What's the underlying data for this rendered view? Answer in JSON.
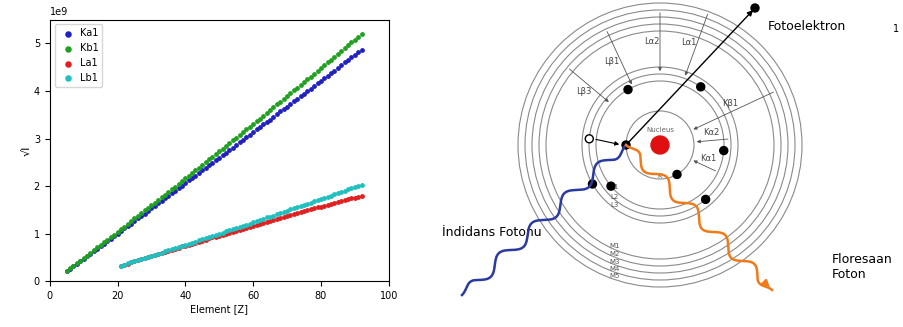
{
  "chart_data": {
    "type": "scatter",
    "x_label": "Element [Z]",
    "y_label": "√I",
    "annotations": [
      "1e9"
    ],
    "xlim": [
      0,
      100
    ],
    "ylim": [
      0,
      5.5
    ],
    "xticks": [
      0,
      20,
      40,
      60,
      80,
      100
    ],
    "yticks": [
      0,
      1,
      2,
      3,
      4,
      5
    ],
    "legend": "upper left",
    "marker": "o",
    "series": [
      {
        "name": "Ka1",
        "color": "#2020c0",
        "x": [
          5,
          6,
          7,
          8,
          9,
          10,
          11,
          12,
          13,
          14,
          15,
          16,
          17,
          18,
          19,
          20,
          21,
          22,
          23,
          24,
          25,
          26,
          27,
          28,
          29,
          30,
          31,
          32,
          33,
          34,
          35,
          36,
          37,
          38,
          39,
          40,
          41,
          42,
          43,
          44,
          45,
          46,
          47,
          48,
          49,
          50,
          51,
          52,
          53,
          54,
          55,
          56,
          57,
          58,
          59,
          60,
          61,
          62,
          63,
          64,
          65,
          66,
          67,
          68,
          69,
          70,
          71,
          72,
          73,
          74,
          75,
          76,
          77,
          78,
          79,
          80,
          81,
          82,
          83,
          84,
          85,
          86,
          87,
          88,
          89,
          90,
          91,
          92
        ],
        "values": [
          0.21,
          0.26,
          0.31,
          0.37,
          0.42,
          0.47,
          0.53,
          0.58,
          0.63,
          0.68,
          0.74,
          0.79,
          0.84,
          0.89,
          0.95,
          1.0,
          1.05,
          1.11,
          1.16,
          1.21,
          1.26,
          1.32,
          1.37,
          1.42,
          1.48,
          1.53,
          1.58,
          1.64,
          1.69,
          1.74,
          1.8,
          1.85,
          1.9,
          1.96,
          2.01,
          2.06,
          2.12,
          2.17,
          2.22,
          2.28,
          2.33,
          2.38,
          2.44,
          2.49,
          2.54,
          2.6,
          2.65,
          2.7,
          2.76,
          2.81,
          2.87,
          2.92,
          2.97,
          3.03,
          3.08,
          3.13,
          3.19,
          3.24,
          3.3,
          3.35,
          3.4,
          3.46,
          3.51,
          3.57,
          3.62,
          3.67,
          3.73,
          3.78,
          3.84,
          3.89,
          3.94,
          4.0,
          4.05,
          4.11,
          4.16,
          4.22,
          4.27,
          4.32,
          4.38,
          4.43,
          4.49,
          4.54,
          4.6,
          4.65,
          4.71,
          4.76,
          4.82,
          4.87
        ]
      },
      {
        "name": "Kb1",
        "color": "#20a020",
        "x": [
          5,
          6,
          7,
          8,
          9,
          10,
          11,
          12,
          13,
          14,
          15,
          16,
          17,
          18,
          19,
          20,
          21,
          22,
          23,
          24,
          25,
          26,
          27,
          28,
          29,
          30,
          31,
          32,
          33,
          34,
          35,
          36,
          37,
          38,
          39,
          40,
          41,
          42,
          43,
          44,
          45,
          46,
          47,
          48,
          49,
          50,
          51,
          52,
          53,
          54,
          55,
          56,
          57,
          58,
          59,
          60,
          61,
          62,
          63,
          64,
          65,
          66,
          67,
          68,
          69,
          70,
          71,
          72,
          73,
          74,
          75,
          76,
          77,
          78,
          79,
          80,
          81,
          82,
          83,
          84,
          85,
          86,
          87,
          88,
          89,
          90,
          91,
          92
        ],
        "values": [
          0.22,
          0.27,
          0.33,
          0.38,
          0.43,
          0.49,
          0.54,
          0.6,
          0.65,
          0.71,
          0.76,
          0.82,
          0.87,
          0.93,
          0.98,
          1.04,
          1.1,
          1.15,
          1.21,
          1.26,
          1.32,
          1.37,
          1.43,
          1.49,
          1.54,
          1.6,
          1.65,
          1.71,
          1.77,
          1.82,
          1.88,
          1.93,
          1.99,
          2.05,
          2.1,
          2.16,
          2.22,
          2.27,
          2.33,
          2.39,
          2.45,
          2.5,
          2.56,
          2.62,
          2.67,
          2.73,
          2.79,
          2.85,
          2.9,
          2.96,
          3.02,
          3.08,
          3.13,
          3.19,
          3.25,
          3.31,
          3.37,
          3.42,
          3.48,
          3.54,
          3.6,
          3.66,
          3.72,
          3.77,
          3.83,
          3.89,
          3.95,
          4.01,
          4.07,
          4.13,
          4.19,
          4.25,
          4.3,
          4.36,
          4.42,
          4.48,
          4.54,
          4.6,
          4.66,
          4.72,
          4.78,
          4.84,
          4.9,
          4.96,
          5.02,
          5.08,
          5.14,
          5.2
        ]
      },
      {
        "name": "La1",
        "color": "#e02020",
        "x": [
          21,
          22,
          23,
          24,
          25,
          26,
          27,
          28,
          29,
          30,
          31,
          32,
          33,
          34,
          35,
          36,
          37,
          38,
          39,
          40,
          41,
          42,
          43,
          44,
          45,
          46,
          47,
          48,
          49,
          50,
          51,
          52,
          53,
          54,
          55,
          56,
          57,
          58,
          59,
          60,
          61,
          62,
          63,
          64,
          65,
          66,
          67,
          68,
          69,
          70,
          71,
          72,
          73,
          74,
          75,
          76,
          77,
          78,
          79,
          80,
          81,
          82,
          83,
          84,
          85,
          86,
          87,
          88,
          89,
          90,
          91,
          92
        ],
        "values": [
          0.33,
          0.35,
          0.37,
          0.4,
          0.42,
          0.44,
          0.46,
          0.49,
          0.51,
          0.53,
          0.55,
          0.57,
          0.6,
          0.62,
          0.64,
          0.66,
          0.68,
          0.7,
          0.73,
          0.75,
          0.77,
          0.79,
          0.81,
          0.83,
          0.85,
          0.87,
          0.9,
          0.92,
          0.94,
          0.96,
          0.98,
          1.0,
          1.02,
          1.04,
          1.06,
          1.08,
          1.1,
          1.12,
          1.15,
          1.17,
          1.19,
          1.21,
          1.23,
          1.25,
          1.27,
          1.29,
          1.31,
          1.33,
          1.35,
          1.37,
          1.39,
          1.41,
          1.43,
          1.45,
          1.47,
          1.49,
          1.51,
          1.53,
          1.55,
          1.56,
          1.58,
          1.6,
          1.62,
          1.64,
          1.66,
          1.68,
          1.7,
          1.72,
          1.74,
          1.76,
          1.78,
          1.79
        ]
      },
      {
        "name": "Lb1",
        "color": "#20c0c0",
        "x": [
          21,
          22,
          23,
          24,
          25,
          26,
          27,
          28,
          29,
          30,
          31,
          32,
          33,
          34,
          35,
          36,
          37,
          38,
          39,
          40,
          41,
          42,
          43,
          44,
          45,
          46,
          47,
          48,
          49,
          50,
          51,
          52,
          53,
          54,
          55,
          56,
          57,
          58,
          59,
          60,
          61,
          62,
          63,
          64,
          65,
          66,
          67,
          68,
          69,
          70,
          71,
          72,
          73,
          74,
          75,
          76,
          77,
          78,
          79,
          80,
          81,
          82,
          83,
          84,
          85,
          86,
          87,
          88,
          89,
          90,
          91,
          92
        ],
        "values": [
          0.33,
          0.35,
          0.38,
          0.4,
          0.42,
          0.44,
          0.47,
          0.49,
          0.51,
          0.53,
          0.56,
          0.58,
          0.6,
          0.63,
          0.65,
          0.67,
          0.7,
          0.72,
          0.74,
          0.76,
          0.79,
          0.81,
          0.83,
          0.86,
          0.88,
          0.91,
          0.93,
          0.95,
          0.98,
          1.0,
          1.02,
          1.05,
          1.07,
          1.09,
          1.12,
          1.14,
          1.17,
          1.19,
          1.21,
          1.24,
          1.26,
          1.29,
          1.31,
          1.34,
          1.36,
          1.38,
          1.41,
          1.43,
          1.46,
          1.48,
          1.51,
          1.53,
          1.56,
          1.58,
          1.6,
          1.63,
          1.65,
          1.68,
          1.7,
          1.73,
          1.75,
          1.78,
          1.8,
          1.83,
          1.85,
          1.88,
          1.9,
          1.93,
          1.95,
          1.98,
          2.01,
          2.03
        ]
      }
    ]
  },
  "diagram": {
    "nucleus": "Nucleus",
    "shells": [
      "K",
      "L1",
      "L2",
      "L3",
      "M1",
      "M2",
      "M3",
      "M4",
      "M5"
    ],
    "transitions": [
      "Lα1",
      "Lα2",
      "Lβ1",
      "Lβ3",
      "Kα2",
      "Kα1",
      "Kβ1"
    ],
    "photoelectron": "Fotoelektron",
    "footnote_mark": "1",
    "incident_photon": "İndidans Fotonu",
    "fluorescent_photon": [
      "Floresaan",
      "Foton"
    ]
  }
}
